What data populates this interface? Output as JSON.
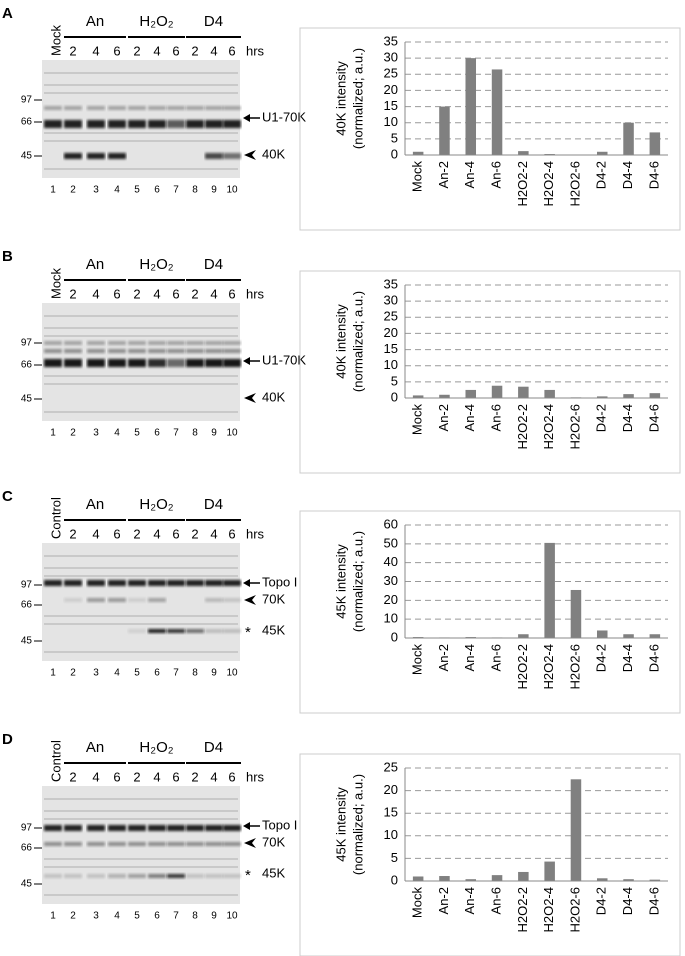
{
  "blots": [
    {
      "letter": "A",
      "control": "Mock",
      "groups": [
        {
          "name": "An",
          "times": [
            2,
            4,
            6
          ]
        },
        {
          "name": "H₂O₂",
          "times": [
            2,
            4,
            6
          ]
        },
        {
          "name": "D4",
          "times": [
            2,
            4,
            6
          ]
        }
      ],
      "unit": "hrs",
      "markers": [
        97,
        66,
        45
      ],
      "bands": [
        {
          "label": "U1-70K",
          "pointer": "arrow"
        },
        {
          "label": "40K",
          "pointer": "arrowhead"
        }
      ],
      "lanes": [
        1,
        2,
        3,
        4,
        5,
        6,
        7,
        8,
        9,
        10
      ]
    },
    {
      "letter": "B",
      "control": "Mock",
      "groups": [
        {
          "name": "An",
          "times": [
            2,
            4,
            6
          ]
        },
        {
          "name": "H₂O₂",
          "times": [
            2,
            4,
            6
          ]
        },
        {
          "name": "D4",
          "times": [
            2,
            4,
            6
          ]
        }
      ],
      "unit": "hrs",
      "markers": [
        97,
        66,
        45
      ],
      "bands": [
        {
          "label": "U1-70K",
          "pointer": "arrow"
        },
        {
          "label": "40K",
          "pointer": "arrowhead"
        }
      ],
      "lanes": [
        1,
        2,
        3,
        4,
        5,
        6,
        7,
        8,
        9,
        10
      ]
    },
    {
      "letter": "C",
      "control": "Control",
      "groups": [
        {
          "name": "An",
          "times": [
            2,
            4,
            6
          ]
        },
        {
          "name": "H₂O₂",
          "times": [
            2,
            4,
            6
          ]
        },
        {
          "name": "D4",
          "times": [
            2,
            4,
            6
          ]
        }
      ],
      "unit": "hrs",
      "markers": [
        97,
        66,
        45
      ],
      "bands": [
        {
          "label": "Topo I",
          "pointer": "arrow"
        },
        {
          "label": "70K",
          "pointer": "arrowhead"
        },
        {
          "label": "45K",
          "pointer": "*"
        }
      ],
      "lanes": [
        1,
        2,
        3,
        4,
        5,
        6,
        7,
        8,
        9,
        10
      ]
    },
    {
      "letter": "D",
      "control": "Control",
      "groups": [
        {
          "name": "An",
          "times": [
            2,
            4,
            6
          ]
        },
        {
          "name": "H₂O₂",
          "times": [
            2,
            4,
            6
          ]
        },
        {
          "name": "D4",
          "times": [
            2,
            4,
            6
          ]
        }
      ],
      "unit": "hrs",
      "markers": [
        97,
        66,
        45
      ],
      "bands": [
        {
          "label": "Topo I",
          "pointer": "arrow"
        },
        {
          "label": "70K",
          "pointer": "arrowhead"
        },
        {
          "label": "45K",
          "pointer": "*"
        }
      ],
      "lanes": [
        1,
        2,
        3,
        4,
        5,
        6,
        7,
        8,
        9,
        10
      ]
    }
  ],
  "chart_data": [
    {
      "type": "bar",
      "ylabel": [
        "40K intensity",
        "(normalized; a.u.)"
      ],
      "categories": [
        "Mock",
        "An-2",
        "An-4",
        "An-6",
        "H2O2-2",
        "H2O2-4",
        "H2O2-6",
        "D4-2",
        "D4-4",
        "D4-6"
      ],
      "values": [
        1,
        15,
        30,
        26.5,
        1.2,
        0.3,
        0.1,
        1,
        10,
        7
      ],
      "color": "#808080",
      "ylim": [
        0,
        35
      ],
      "yticks": [
        0,
        5,
        10,
        15,
        20,
        25,
        30,
        35
      ],
      "grid": true
    },
    {
      "type": "bar",
      "ylabel": [
        "40K intensity",
        "(normalized; a.u.)"
      ],
      "categories": [
        "Mock",
        "An-2",
        "An-4",
        "An-6",
        "H2O2-2",
        "H2O2-4",
        "H2O2-6",
        "D4-2",
        "D4-4",
        "D4-6"
      ],
      "values": [
        0.8,
        1,
        2.5,
        3.8,
        3.5,
        2.5,
        0.2,
        0.5,
        1.2,
        1.5
      ],
      "color": "#808080",
      "ylim": [
        0,
        35
      ],
      "yticks": [
        0,
        5,
        10,
        15,
        20,
        25,
        30,
        35
      ],
      "grid": true
    },
    {
      "type": "bar",
      "ylabel": [
        "45K intensity",
        "(normalized; a.u.)"
      ],
      "categories": [
        "Mock",
        "An-2",
        "An-4",
        "An-6",
        "H2O2-2",
        "H2O2-4",
        "H2O2-6",
        "D4-2",
        "D4-4",
        "D4-6"
      ],
      "values": [
        0.5,
        0.3,
        0.5,
        0.3,
        2,
        50.5,
        25.5,
        4,
        2,
        2
      ],
      "color": "#808080",
      "ylim": [
        0,
        60
      ],
      "yticks": [
        0,
        10,
        20,
        30,
        40,
        50,
        60
      ],
      "grid": true
    },
    {
      "type": "bar",
      "ylabel": [
        "45K intensity",
        "(normalized; a.u.)"
      ],
      "categories": [
        "Mock",
        "An-2",
        "An-4",
        "An-6",
        "H2O2-2",
        "H2O2-4",
        "H2O2-6",
        "D4-2",
        "D4-4",
        "D4-6"
      ],
      "values": [
        1,
        1.1,
        0.4,
        1.3,
        2,
        4.3,
        22.5,
        0.6,
        0.4,
        0.3
      ],
      "color": "#808080",
      "ylim": [
        0,
        25
      ],
      "yticks": [
        0,
        5,
        10,
        15,
        20,
        25
      ],
      "grid": true
    }
  ]
}
